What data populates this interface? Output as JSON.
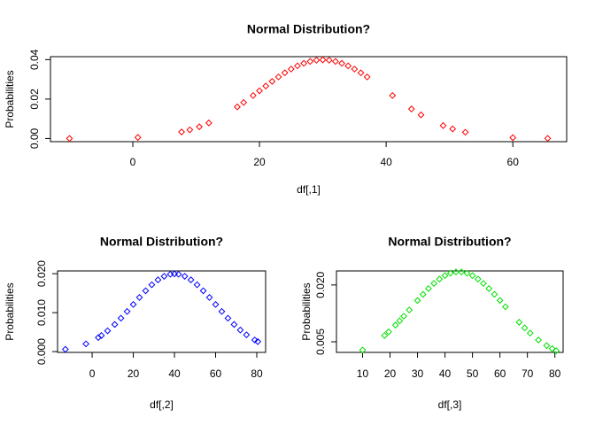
{
  "chart_data": [
    {
      "type": "scatter",
      "title": "Normal Distribution?",
      "xlabel": "df[,1]",
      "ylabel": "Probabilities",
      "color": "#ff0000",
      "marker": "diamond",
      "x": [
        -10,
        0.8,
        7.7,
        9,
        10.5,
        12,
        16.5,
        17.5,
        19,
        20,
        21,
        22,
        23,
        24,
        25,
        26,
        27,
        28,
        29,
        30,
        31,
        32,
        33,
        34,
        35,
        36,
        37,
        41,
        44,
        45.5,
        49,
        50.5,
        52.5,
        60,
        65.5
      ],
      "y": [
        1e-05,
        0.00056,
        0.00332,
        0.0044,
        0.00596,
        0.0079,
        0.01604,
        0.01827,
        0.02179,
        0.0242,
        0.02661,
        0.02897,
        0.03123,
        0.03332,
        0.03521,
        0.03683,
        0.03814,
        0.0391,
        0.0397,
        0.03989,
        0.0397,
        0.0391,
        0.03814,
        0.03683,
        0.03521,
        0.03332,
        0.03123,
        0.02179,
        0.01497,
        0.012,
        0.00656,
        0.00488,
        0.00317,
        0.00044,
        7e-05
      ],
      "xlim": [
        -13.0,
        68.5
      ],
      "ylim": [
        -0.0016,
        0.0415
      ],
      "xticks": [
        0,
        20,
        40,
        60
      ],
      "yticks": [
        {
          "value": 0,
          "label": "0.00"
        },
        {
          "value": 0.02,
          "label": "0.02"
        },
        {
          "value": 0.04,
          "label": "0.04"
        }
      ]
    },
    {
      "type": "scatter",
      "title": "Normal Distribution?",
      "xlabel": "df[,2]",
      "ylabel": "Probabilities",
      "color": "#0000ff",
      "marker": "diamond",
      "x": [
        -13,
        -3,
        3,
        4.5,
        7.5,
        11,
        14,
        17,
        20,
        23,
        26,
        29,
        32,
        35,
        38,
        40,
        42,
        45,
        48,
        51,
        54,
        57,
        60,
        63,
        66,
        69,
        72,
        75,
        79,
        80.5
      ],
      "y": [
        0.0006,
        0.00198,
        0.0036,
        0.00413,
        0.00533,
        0.00697,
        0.00857,
        0.0103,
        0.0121,
        0.0139,
        0.01561,
        0.01715,
        0.01841,
        0.01933,
        0.01985,
        0.01995,
        0.01985,
        0.01933,
        0.01841,
        0.01715,
        0.01561,
        0.0139,
        0.0121,
        0.0103,
        0.00857,
        0.00697,
        0.00554,
        0.00431,
        0.00298,
        0.00257
      ],
      "xlim": [
        -16.8,
        84.3
      ],
      "ylim": [
        -0.0002,
        0.0207
      ],
      "xticks": [
        0,
        20,
        40,
        60,
        80
      ],
      "yticks": [
        {
          "value": 0,
          "label": "0.000"
        },
        {
          "value": 0.01,
          "label": "0.010"
        },
        {
          "value": 0.02,
          "label": "0.020"
        }
      ]
    },
    {
      "type": "scatter",
      "title": "Normal Distribution?",
      "xlabel": "df[,3]",
      "ylabel": "Probabilities",
      "color": "#00e000",
      "marker": "diamond",
      "x": [
        10,
        18,
        19.5,
        22,
        23.5,
        25,
        27,
        30,
        32,
        34,
        36,
        38,
        40,
        42,
        44,
        46,
        48,
        50,
        52,
        54,
        56,
        58,
        60,
        62,
        67,
        69,
        71,
        74,
        77,
        79,
        80.5
      ],
      "y": [
        0.00282,
        0.00665,
        0.00762,
        0.0094,
        0.01054,
        0.01175,
        0.01339,
        0.01591,
        0.01752,
        0.01904,
        0.0204,
        0.02156,
        0.02248,
        0.02311,
        0.02343,
        0.02343,
        0.02311,
        0.02248,
        0.02156,
        0.0204,
        0.01904,
        0.01752,
        0.01591,
        0.01424,
        0.01016,
        0.00866,
        0.00729,
        0.00548,
        0.004,
        0.00318,
        0.00265
      ],
      "xlim": [
        0.5,
        83
      ],
      "ylim": [
        0.0022,
        0.0237
      ],
      "xticks": [
        10,
        20,
        30,
        40,
        50,
        60,
        70,
        80
      ],
      "yticks": [
        {
          "value": 0.005,
          "label": "0.005"
        },
        {
          "value": 0.02,
          "label": "0.020"
        }
      ]
    }
  ]
}
